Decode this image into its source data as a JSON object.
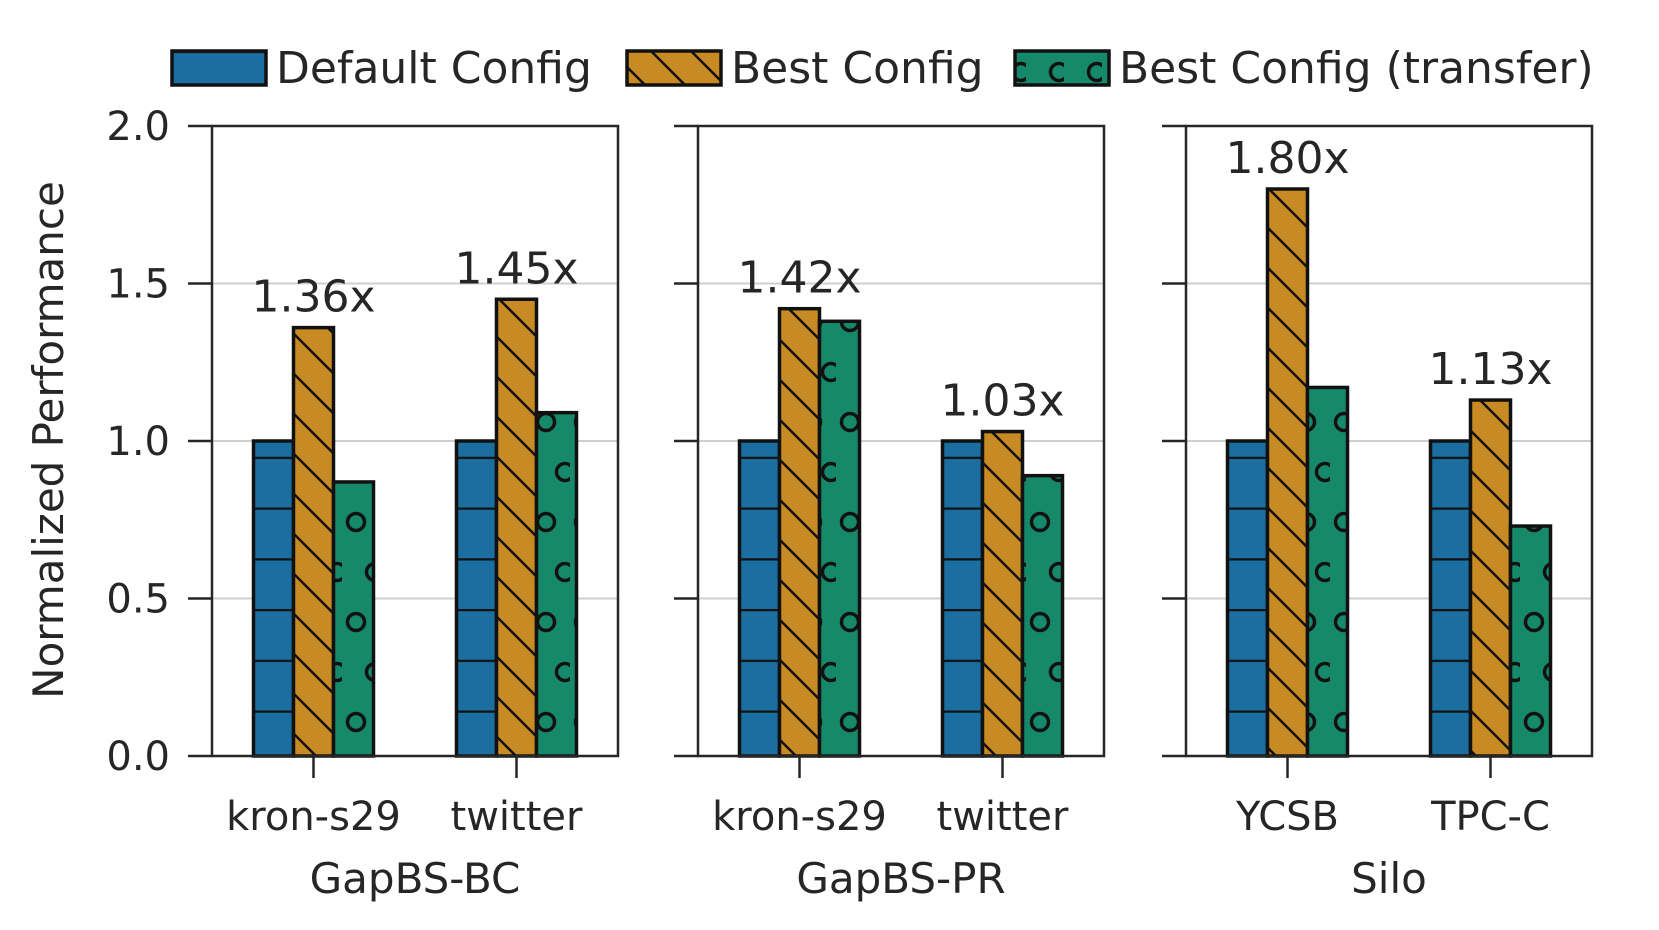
{
  "chart_data": {
    "type": "bar",
    "ylabel": "Normalized Performance",
    "ylim": [
      0,
      2.0
    ],
    "yticks": [
      "0.0",
      "0.5",
      "1.0",
      "1.5",
      "2.0"
    ],
    "grid": true,
    "legend_position": "top",
    "colors": {
      "default": "#1a6ea0",
      "best": "#c88a22",
      "transfer": "#17896b"
    },
    "series": [
      {
        "key": "default",
        "name": "Default Config",
        "hatch": "horizontal lines"
      },
      {
        "key": "best",
        "name": "Best Config",
        "hatch": "diagonal lines"
      },
      {
        "key": "transfer",
        "name": "Best Config (transfer)",
        "hatch": "circles"
      }
    ],
    "panels": [
      {
        "group": "GapBS-BC",
        "categories": [
          "kron-s29",
          "twitter"
        ],
        "values": {
          "default": [
            1.0,
            1.0
          ],
          "best": [
            1.36,
            1.45
          ],
          "transfer": [
            0.87,
            1.09
          ]
        },
        "annotations": [
          "1.36x",
          "1.45x"
        ]
      },
      {
        "group": "GapBS-PR",
        "categories": [
          "kron-s29",
          "twitter"
        ],
        "values": {
          "default": [
            1.0,
            1.0
          ],
          "best": [
            1.42,
            1.03
          ],
          "transfer": [
            1.38,
            0.89
          ]
        },
        "annotations": [
          "1.42x",
          "1.03x"
        ]
      },
      {
        "group": "Silo",
        "categories": [
          "YCSB",
          "TPC-C"
        ],
        "values": {
          "default": [
            1.0,
            1.0
          ],
          "best": [
            1.8,
            1.13
          ],
          "transfer": [
            1.17,
            0.73
          ]
        },
        "annotations": [
          "1.80x",
          "1.13x"
        ]
      }
    ]
  }
}
